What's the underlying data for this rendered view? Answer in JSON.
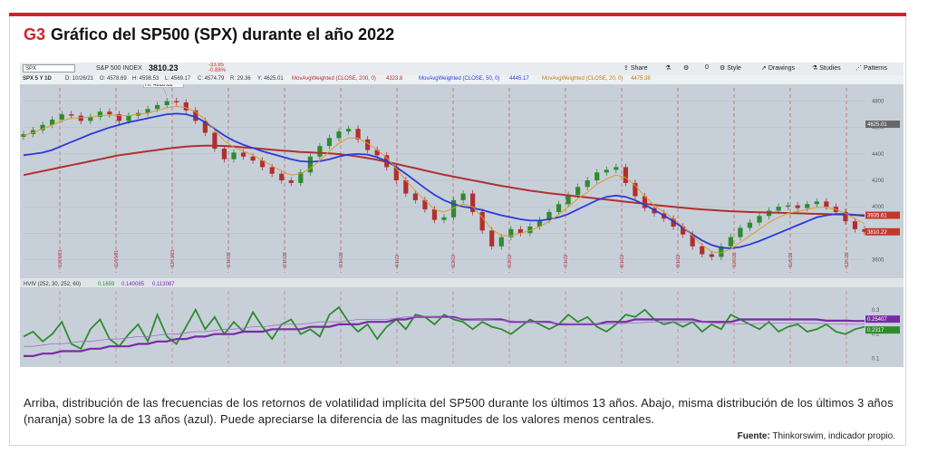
{
  "figure": {
    "code": "G3",
    "title": "Gráfico del SP500 (SPX) durante el año 2022",
    "caption": "Arriba, distribución de las frecuencias de los retornos de volatilidad implícita del SP500 durante los últimos 13 años. Abajo, misma distribución de los últimos 3 años (naranja) sobre la de 13 años (azul). Puede apreciarse la diferencia de las magnitudes de los valores menos centrales.",
    "source_label": "Fuente:",
    "source_text": "Thinkorswim, indicador propio."
  },
  "toolbar": {
    "symbol": "SPX",
    "index_name": "S&P 500 INDEX",
    "last_price": "3810.23",
    "change": "-33.85",
    "change_pct": "-0.88%",
    "share": "Share",
    "style": "Style",
    "drawings": "Drawings",
    "studies": "Studies",
    "patterns": "Patterns",
    "zero": "0"
  },
  "info_bar": {
    "period": "SPX 5 Y 1D",
    "date": "D: 10/26/21",
    "open": "O: 4578.69",
    "high": "H: 4598.53",
    "low": "L: 4569.17",
    "close": "C: 4574.79",
    "range": "R: 29.36",
    "y": "Y: 4625.01",
    "study1": "MovAvgWeighted (CLOSE, 200, 0)",
    "study1_val": "4323.8",
    "study2": "MovAvgWeighted (CLOSE, 50, 0)",
    "study2_val": "4445.17",
    "study3": "MovAvgWeighted (CLOSE, 20, 0)",
    "study3_val": "4475.38"
  },
  "hi_label": "Hi: 4818.62",
  "price_badges": [
    {
      "value": "4625.01",
      "color": "#666666"
    },
    {
      "value": "3935.61",
      "color": "#c0392b"
    },
    {
      "value": "3810.22",
      "color": "#c0392b"
    }
  ],
  "lower_study": {
    "label": "HVIV (252, 30, 252, 60)",
    "v1": "0.1659",
    "v2": "0.140085",
    "v3": "0.113087",
    "badges": [
      {
        "value": "0.25407",
        "color": "#7a2aa8"
      },
      {
        "value": "0.2317",
        "color": "#2e8b2e"
      }
    ],
    "y_ticks": [
      "0.3",
      "0.2",
      "0.1"
    ]
  },
  "colors": {
    "accent_red": "#d2232a",
    "chart_bg": "#c7d0d9",
    "up_candle": "#2e8b2e",
    "down_candle": "#b03030",
    "ma200": "#b03030",
    "ma50": "#2a3ad8",
    "ma20": "#e09a2a",
    "hv_green": "#2e8b2e",
    "hv_purple": "#7a2aa8",
    "hv_thin": "#a070c8"
  },
  "chart_data": [
    {
      "type": "line",
      "chart": "price",
      "ylim": [
        3500,
        4900
      ],
      "y_ticks": [
        3600,
        3800,
        4000,
        4200,
        4400,
        4600,
        4800
      ],
      "x_labels": [
        "10/26/21",
        "11/15/21",
        "12/13/21",
        "1/10/22",
        "2/15/22",
        "3/14/22",
        "4/1/22",
        "5/2/22",
        "6/2/22",
        "7/1/22",
        "8/1/22",
        "9/1/22",
        "10/3/22",
        "11/1/22",
        "12/1/22"
      ],
      "close": [
        4550,
        4580,
        4620,
        4660,
        4700,
        4690,
        4650,
        4680,
        4720,
        4700,
        4650,
        4690,
        4710,
        4740,
        4770,
        4800,
        4790,
        4730,
        4650,
        4560,
        4440,
        4360,
        4410,
        4380,
        4350,
        4300,
        4250,
        4200,
        4180,
        4260,
        4380,
        4460,
        4520,
        4570,
        4590,
        4510,
        4430,
        4390,
        4300,
        4200,
        4100,
        4050,
        3980,
        3900,
        3920,
        4050,
        4100,
        3960,
        3820,
        3700,
        3770,
        3830,
        3800,
        3850,
        3900,
        3960,
        4020,
        4090,
        4150,
        4200,
        4260,
        4280,
        4300,
        4180,
        4080,
        3990,
        3950,
        3910,
        3850,
        3790,
        3700,
        3640,
        3620,
        3700,
        3770,
        3840,
        3880,
        3930,
        3970,
        4000,
        4010,
        3990,
        4020,
        4040,
        4000,
        3960,
        3890,
        3830,
        3810
      ],
      "ma20": [
        4540,
        4560,
        4590,
        4620,
        4650,
        4670,
        4675,
        4680,
        4690,
        4695,
        4690,
        4690,
        4700,
        4710,
        4730,
        4750,
        4760,
        4750,
        4720,
        4660,
        4580,
        4500,
        4450,
        4420,
        4390,
        4350,
        4310,
        4270,
        4240,
        4250,
        4290,
        4350,
        4420,
        4480,
        4520,
        4520,
        4480,
        4430,
        4370,
        4290,
        4200,
        4120,
        4050,
        3980,
        3960,
        3990,
        4020,
        4000,
        3920,
        3830,
        3780,
        3780,
        3800,
        3820,
        3850,
        3890,
        3940,
        4000,
        4060,
        4110,
        4170,
        4210,
        4240,
        4220,
        4160,
        4080,
        4010,
        3960,
        3910,
        3850,
        3780,
        3710,
        3660,
        3650,
        3680,
        3730,
        3780,
        3830,
        3880,
        3920,
        3950,
        3965,
        3980,
        3995,
        3995,
        3980,
        3950,
        3910,
        3870
      ],
      "ma50": [
        4390,
        4400,
        4410,
        4430,
        4460,
        4490,
        4520,
        4550,
        4575,
        4600,
        4620,
        4640,
        4655,
        4670,
        4685,
        4700,
        4705,
        4700,
        4680,
        4640,
        4590,
        4540,
        4500,
        4470,
        4445,
        4420,
        4400,
        4380,
        4360,
        4345,
        4340,
        4345,
        4360,
        4380,
        4395,
        4400,
        4395,
        4375,
        4345,
        4300,
        4250,
        4195,
        4140,
        4090,
        4050,
        4020,
        4000,
        3990,
        3975,
        3955,
        3935,
        3920,
        3905,
        3895,
        3895,
        3905,
        3920,
        3945,
        3980,
        4015,
        4050,
        4075,
        4085,
        4075,
        4050,
        4015,
        3975,
        3935,
        3890,
        3840,
        3790,
        3745,
        3710,
        3690,
        3685,
        3695,
        3715,
        3740,
        3770,
        3800,
        3830,
        3860,
        3890,
        3920,
        3935,
        3945,
        3945,
        3938,
        3930
      ],
      "ma200": [
        4240,
        4255,
        4270,
        4285,
        4300,
        4315,
        4330,
        4345,
        4360,
        4375,
        4390,
        4400,
        4410,
        4420,
        4430,
        4440,
        4448,
        4455,
        4460,
        4462,
        4462,
        4460,
        4456,
        4450,
        4444,
        4438,
        4432,
        4426,
        4420,
        4415,
        4412,
        4408,
        4404,
        4398,
        4390,
        4380,
        4368,
        4355,
        4340,
        4324,
        4308,
        4292,
        4275,
        4258,
        4242,
        4228,
        4214,
        4200,
        4186,
        4172,
        4158,
        4146,
        4134,
        4122,
        4112,
        4102,
        4094,
        4086,
        4078,
        4070,
        4062,
        4054,
        4046,
        4038,
        4030,
        4022,
        4014,
        4006,
        3999,
        3992,
        3986,
        3980,
        3975,
        3970,
        3966,
        3963,
        3960,
        3958,
        3956,
        3954,
        3952,
        3950,
        3948,
        3946,
        3944,
        3942,
        3940,
        3938,
        3936
      ]
    },
    {
      "type": "line",
      "chart": "hviv",
      "ylim": [
        0.08,
        0.34
      ],
      "y_ticks": [
        0.1,
        0.2,
        0.3
      ],
      "series": [
        {
          "name": "green",
          "values": [
            0.19,
            0.21,
            0.17,
            0.2,
            0.25,
            0.16,
            0.14,
            0.22,
            0.26,
            0.18,
            0.15,
            0.2,
            0.24,
            0.17,
            0.28,
            0.19,
            0.16,
            0.23,
            0.3,
            0.22,
            0.27,
            0.2,
            0.25,
            0.21,
            0.29,
            0.23,
            0.18,
            0.24,
            0.26,
            0.2,
            0.22,
            0.19,
            0.28,
            0.31,
            0.25,
            0.21,
            0.24,
            0.18,
            0.23,
            0.26,
            0.22,
            0.28,
            0.27,
            0.24,
            0.28,
            0.26,
            0.25,
            0.22,
            0.25,
            0.23,
            0.22,
            0.2,
            0.23,
            0.26,
            0.24,
            0.22,
            0.24,
            0.28,
            0.25,
            0.27,
            0.23,
            0.21,
            0.24,
            0.28,
            0.27,
            0.3,
            0.26,
            0.24,
            0.25,
            0.23,
            0.25,
            0.21,
            0.24,
            0.22,
            0.28,
            0.26,
            0.24,
            0.22,
            0.25,
            0.21,
            0.23,
            0.24,
            0.21,
            0.22,
            0.24,
            0.21,
            0.2,
            0.22,
            0.23
          ]
        },
        {
          "name": "purple",
          "values": [
            0.11,
            0.11,
            0.12,
            0.12,
            0.13,
            0.13,
            0.13,
            0.14,
            0.14,
            0.15,
            0.15,
            0.15,
            0.16,
            0.16,
            0.17,
            0.17,
            0.18,
            0.18,
            0.19,
            0.19,
            0.2,
            0.2,
            0.2,
            0.21,
            0.21,
            0.21,
            0.22,
            0.22,
            0.22,
            0.22,
            0.23,
            0.23,
            0.23,
            0.24,
            0.24,
            0.24,
            0.25,
            0.25,
            0.25,
            0.26,
            0.26,
            0.27,
            0.27,
            0.27,
            0.27,
            0.27,
            0.26,
            0.26,
            0.26,
            0.26,
            0.26,
            0.25,
            0.25,
            0.25,
            0.25,
            0.25,
            0.24,
            0.24,
            0.24,
            0.24,
            0.24,
            0.25,
            0.25,
            0.25,
            0.26,
            0.26,
            0.26,
            0.26,
            0.26,
            0.26,
            0.26,
            0.25,
            0.25,
            0.25,
            0.25,
            0.26,
            0.26,
            0.26,
            0.26,
            0.26,
            0.26,
            0.26,
            0.26,
            0.26,
            0.255,
            0.255,
            0.255,
            0.254,
            0.254
          ]
        },
        {
          "name": "thin-purple",
          "values": [
            0.15,
            0.15,
            0.155,
            0.16,
            0.16,
            0.165,
            0.17,
            0.17,
            0.175,
            0.18,
            0.18,
            0.185,
            0.19,
            0.19,
            0.195,
            0.2,
            0.2,
            0.205,
            0.21,
            0.21,
            0.215,
            0.22,
            0.22,
            0.225,
            0.23,
            0.23,
            0.235,
            0.24,
            0.24,
            0.24,
            0.245,
            0.25,
            0.25,
            0.25,
            0.255,
            0.26,
            0.26,
            0.26,
            0.26,
            0.265,
            0.27,
            0.27,
            0.27,
            0.27,
            0.268,
            0.266,
            0.264,
            0.262,
            0.26,
            0.258,
            0.256,
            0.254,
            0.252,
            0.25,
            0.248,
            0.246,
            0.244,
            0.242,
            0.24,
            0.24,
            0.24,
            0.241,
            0.242,
            0.244,
            0.246,
            0.248,
            0.25,
            0.25,
            0.25,
            0.25,
            0.25,
            0.248,
            0.246,
            0.244,
            0.242,
            0.242,
            0.242,
            0.243,
            0.244,
            0.245,
            0.245,
            0.245,
            0.245,
            0.244,
            0.243,
            0.242,
            0.241,
            0.24,
            0.24
          ]
        }
      ]
    }
  ]
}
